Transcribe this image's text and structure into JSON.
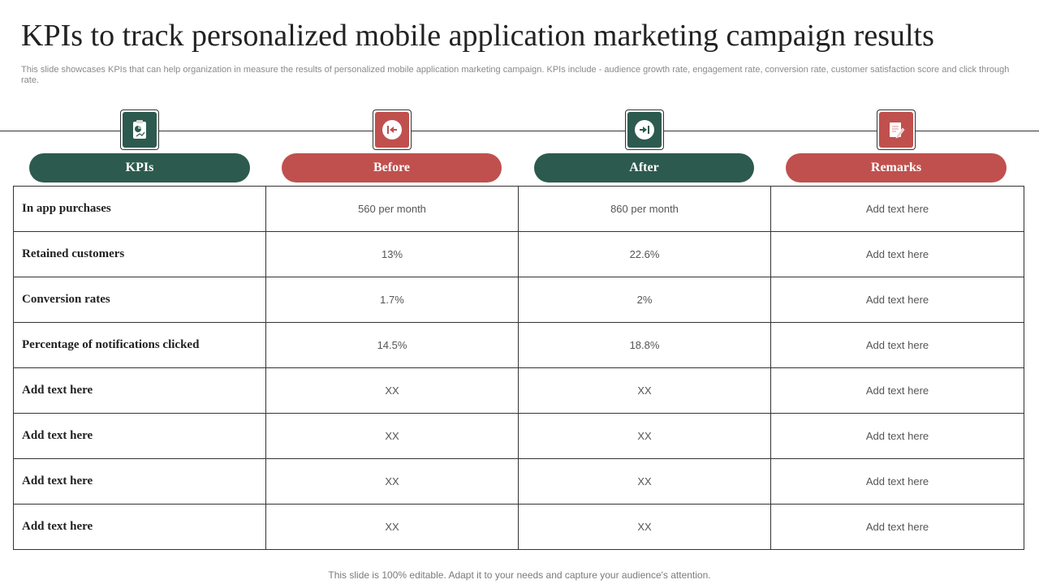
{
  "title": "KPIs to track personalized mobile application marketing campaign results",
  "subtitle": "This slide showcases KPIs that can help organization in measure the results of personalized mobile application marketing campaign. KPIs include - audience growth rate, engagement rate, conversion rate, customer satisfaction score and click through rate.",
  "colors": {
    "green": "#2d5a4e",
    "red": "#c0504d"
  },
  "headers": [
    {
      "label": "KPIs",
      "icon": "clipboard-chart-icon"
    },
    {
      "label": "Before",
      "icon": "arrow-left-to-bar-icon"
    },
    {
      "label": "After",
      "icon": "arrow-right-to-bar-icon"
    },
    {
      "label": "Remarks",
      "icon": "notepad-pencil-icon"
    }
  ],
  "rows": [
    {
      "kpi": "In  app purchases",
      "before": "560 per month",
      "after": "860 per month",
      "remarks": "Add text here"
    },
    {
      "kpi": "Retained customers",
      "before": "13%",
      "after": "22.6%",
      "remarks": "Add text here"
    },
    {
      "kpi": "Conversion rates",
      "before": "1.7%",
      "after": "2%",
      "remarks": "Add text here"
    },
    {
      "kpi": "Percentage of notifications clicked",
      "before": "14.5%",
      "after": "18.8%",
      "remarks": "Add text here"
    },
    {
      "kpi": "Add text here",
      "before": "XX",
      "after": "XX",
      "remarks": "Add text here"
    },
    {
      "kpi": "Add text here",
      "before": "XX",
      "after": "XX",
      "remarks": "Add text here"
    },
    {
      "kpi": "Add text here",
      "before": "XX",
      "after": "XX",
      "remarks": "Add text here"
    },
    {
      "kpi": "Add text here",
      "before": "XX",
      "after": "XX",
      "remarks": "Add text here"
    }
  ],
  "footer": "This slide is 100% editable. Adapt it to your needs and capture your audience's attention."
}
